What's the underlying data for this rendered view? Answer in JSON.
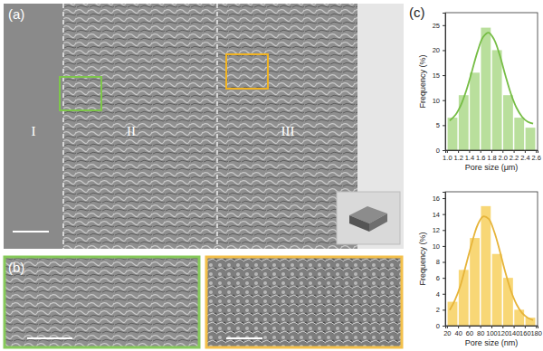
{
  "panels": {
    "a": {
      "label": "(a)",
      "regions": [
        "I",
        "II",
        "III"
      ]
    },
    "b": {
      "label": "(b)"
    },
    "c": {
      "label": "(c)"
    }
  },
  "chart_data": [
    {
      "type": "histogram",
      "x_label": "Pore size (μm)",
      "y_label": "Frequency (%)",
      "bins": [
        1.0,
        1.2,
        1.4,
        1.6,
        1.8,
        2.0,
        2.2,
        2.4,
        2.6
      ],
      "counts": [
        6.5,
        11,
        15.5,
        24.5,
        20,
        11,
        6.5,
        4.5
      ],
      "color": "#b9df9c",
      "fit": {
        "type": "line",
        "color": "#76bd45",
        "x": [
          1.05,
          1.15,
          1.25,
          1.35,
          1.45,
          1.55,
          1.65,
          1.75,
          1.85,
          1.95,
          2.05,
          2.15,
          2.25,
          2.35,
          2.45,
          2.55
        ],
        "values": [
          5.9,
          7.0,
          9.0,
          12.0,
          15.8,
          19.7,
          22.6,
          23.5,
          22.1,
          19.0,
          15.0,
          11.3,
          8.5,
          6.7,
          5.7,
          5.3
        ]
      },
      "xlim": [
        0.97,
        2.63
      ],
      "xticks": [
        {
          "value": 1,
          "label": "1.0"
        },
        1.2,
        1.4,
        1.6,
        1.8,
        {
          "value": 2,
          "label": "2.0"
        },
        2.2,
        2.4,
        2.6
      ],
      "ylim": [
        0,
        27.5
      ],
      "yticks": [
        0,
        5,
        10,
        15,
        20,
        25
      ]
    },
    {
      "type": "histogram",
      "x_label": "Pore size (nm)",
      "y_label": "Frequency (%)",
      "bins": [
        20,
        40,
        60,
        80,
        100,
        120,
        140,
        160,
        180
      ],
      "counts": [
        3,
        7,
        11,
        15,
        9,
        6,
        2,
        1
      ],
      "color": "#f8d776",
      "fit": {
        "type": "line",
        "color": "#e6b43a",
        "x": [
          25,
          35,
          45,
          55,
          65,
          75,
          85,
          95,
          105,
          115,
          125,
          135,
          145,
          155,
          165,
          175
        ],
        "values": [
          1.96,
          3.3,
          5.2,
          7.8,
          10.4,
          12.6,
          13.7,
          13.4,
          11.8,
          9.4,
          6.7,
          4.4,
          2.7,
          1.6,
          1.0,
          0.7
        ]
      },
      "xlim": [
        17,
        183
      ],
      "xticks": [
        20,
        40,
        60,
        80,
        100,
        120,
        140,
        160,
        180
      ],
      "ylim": [
        0,
        16.8
      ],
      "yticks": [
        0,
        2,
        4,
        6,
        8,
        10,
        12,
        14,
        16
      ]
    }
  ]
}
